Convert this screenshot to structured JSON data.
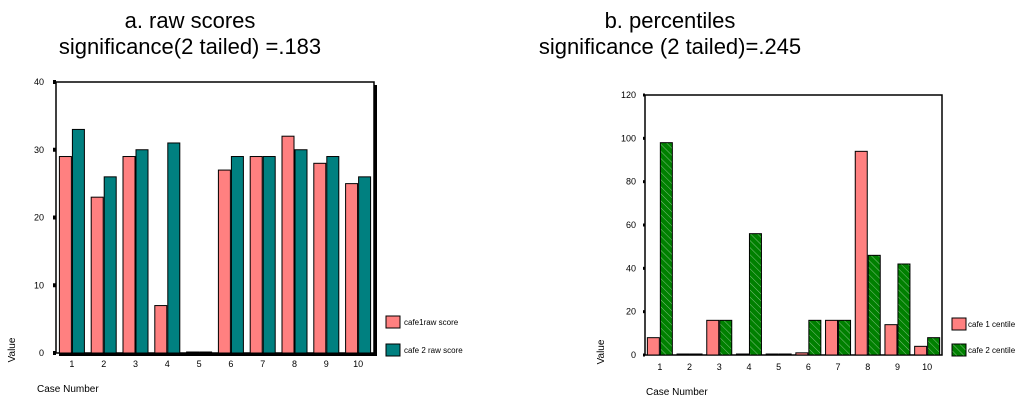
{
  "panels": [
    {
      "title_line1": "a. raw scores",
      "title_line2": "significance(2 tailed) =.183"
    },
    {
      "title_line1": "b. percentiles",
      "title_line2": "significance (2 tailed)=.245"
    }
  ],
  "chart_data": [
    {
      "type": "bar",
      "title": "a. raw scores",
      "subtitle": "significance(2 tailed) =.183",
      "xlabel": "Case Number",
      "ylabel": "Value",
      "categories": [
        "1",
        "2",
        "3",
        "4",
        "5",
        "6",
        "7",
        "8",
        "9",
        "10"
      ],
      "ylim": [
        0,
        40
      ],
      "yticks": [
        0,
        10,
        20,
        30,
        40
      ],
      "series": [
        {
          "name": "cafe1raw score",
          "color": "#ff8080",
          "hatch": false,
          "values": [
            29,
            23,
            29,
            7,
            0,
            27,
            29,
            32,
            28,
            25
          ]
        },
        {
          "name": "cafe 2 raw score",
          "color": "#008080",
          "hatch": false,
          "values": [
            33,
            26,
            30,
            31,
            0,
            29,
            29,
            30,
            29,
            26
          ]
        }
      ],
      "legend": "right-bottom",
      "grid": false
    },
    {
      "type": "bar",
      "title": "b. percentiles",
      "subtitle": "significance (2 tailed)=.245",
      "xlabel": "Case Number",
      "ylabel": "Value",
      "categories": [
        "1",
        "2",
        "3",
        "4",
        "5",
        "6",
        "7",
        "8",
        "9",
        "10"
      ],
      "ylim": [
        0,
        120
      ],
      "yticks": [
        0,
        20,
        40,
        60,
        80,
        100,
        120
      ],
      "series": [
        {
          "name": "cafe 1 centile",
          "color": "#ff8080",
          "hatch": false,
          "values": [
            8,
            0,
            16,
            0,
            0,
            1,
            16,
            94,
            14,
            4
          ]
        },
        {
          "name": "cafe 2 centile",
          "color": "#008000",
          "hatch": true,
          "values": [
            98,
            0,
            16,
            56,
            0,
            16,
            16,
            46,
            42,
            8
          ]
        }
      ],
      "legend": "right-bottom",
      "grid": false
    }
  ]
}
